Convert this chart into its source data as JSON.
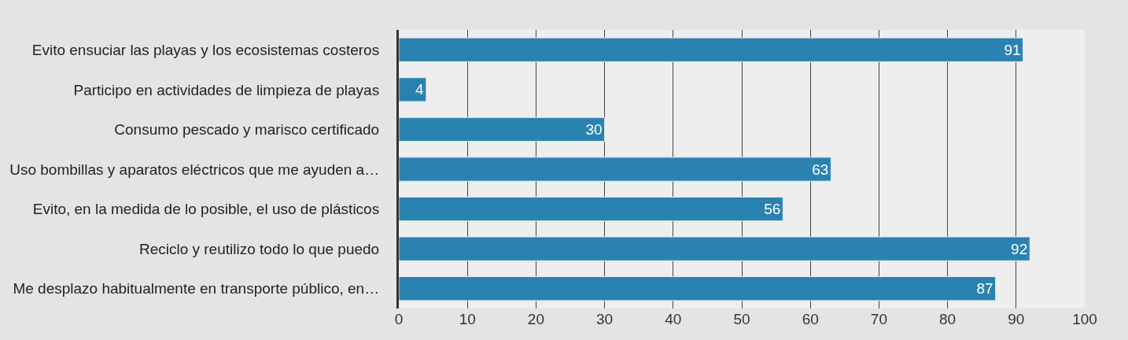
{
  "chart_data": {
    "type": "bar",
    "orientation": "horizontal",
    "categories": [
      "Evito ensuciar las playas y los ecosistemas costeros",
      "Participo en actividades de limpieza de playas",
      "Consumo pescado y marisco certificado",
      "Uso bombillas y aparatos eléctricos que me ayuden a…",
      "Evito, en la medida de lo posible, el uso de plásticos",
      "Reciclo y reutilizo todo lo que puedo",
      "Me desplazo habitualmente en transporte público, en…"
    ],
    "values": [
      91,
      4,
      30,
      63,
      56,
      92,
      87
    ],
    "color": "#2a82b0",
    "xlim": [
      0,
      100
    ],
    "xticks": [
      0,
      10,
      20,
      30,
      40,
      50,
      60,
      70,
      80,
      90,
      100
    ],
    "grid": "x",
    "data_labels": true,
    "legend": false
  }
}
